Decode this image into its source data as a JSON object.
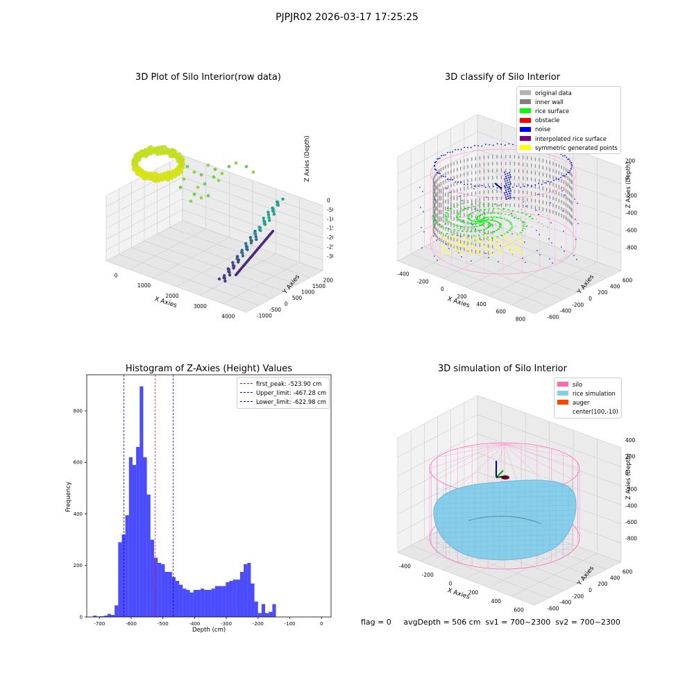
{
  "suptitle": "PJPJR02 2026-03-17 17:25:25",
  "panels": {
    "raw": {
      "title": "3D Plot of Silo Interior(row data)",
      "xlabel": "X Axies",
      "ylabel": "Y Axies",
      "zlabel": "Z Axies (Depth)",
      "xticks": [
        "0",
        "1000",
        "2000",
        "3000",
        "4000"
      ],
      "yticks": [
        "-1000",
        "-500",
        "0",
        "500",
        "1000",
        "1500",
        "2000"
      ],
      "zticks": [
        "0",
        "-500",
        "-1000",
        "-1500",
        "-2000",
        "-2500",
        "-3000"
      ]
    },
    "classify": {
      "title": "3D classify of Silo Interior",
      "xlabel": "X Axies",
      "ylabel": "Y Axies",
      "zlabel": "Z Axies (Depth)",
      "xticks": [
        "-400",
        "-200",
        "0",
        "200",
        "400",
        "600",
        "800"
      ],
      "yticks": [
        "-600",
        "-400",
        "-200",
        "0",
        "200",
        "400",
        "600"
      ],
      "zticks": [
        "200",
        "0",
        "-200",
        "-400",
        "-600",
        "-800"
      ],
      "legend": [
        {
          "label": "original data",
          "color": "#b3b3b3"
        },
        {
          "label": "inner wall",
          "color": "#808080"
        },
        {
          "label": "rice surface",
          "color": "#00ff00"
        },
        {
          "label": "obstacle",
          "color": "#ff0000"
        },
        {
          "label": "noise",
          "color": "#0000ff"
        },
        {
          "label": "interpolated rice surface",
          "color": "#800080"
        },
        {
          "label": "symmetric generated points",
          "color": "#ffff00"
        }
      ]
    },
    "simulation": {
      "title": "3D simulation of Silo Interior",
      "xlabel": "X Axies",
      "ylabel": "Y Axies",
      "zlabel": "Z Axies (Depth)",
      "xticks": [
        "-400",
        "-200",
        "0",
        "200",
        "400",
        "600"
      ],
      "yticks": [
        "-600",
        "-400",
        "-200",
        "0",
        "200",
        "400",
        "600"
      ],
      "zticks": [
        "400",
        "200",
        "0",
        "-200",
        "-400",
        "-600",
        "-800"
      ],
      "legend": [
        {
          "label": "silo",
          "color": "#ff69b4"
        },
        {
          "label": "rice simulation",
          "color": "#87ceeb"
        },
        {
          "label": "auger",
          "color": "#ff4500"
        },
        {
          "label": "center(100,-10)",
          "color": ""
        }
      ]
    }
  },
  "footer": {
    "text": "flag = 0     avgDepth = 506 cm  sv1 = 700~2300  sv2 = 700~2300"
  },
  "chart_data": [
    {
      "type": "bar",
      "title": "Histogram of Z-Axies (Height) Values",
      "xlabel": "Depth (cm)",
      "ylabel": "Frequency",
      "xlim": [
        -740,
        30
      ],
      "ylim": [
        0,
        940
      ],
      "xticks": [
        -700,
        -600,
        -500,
        -400,
        -300,
        -200,
        -100,
        0
      ],
      "yticks": [
        0,
        200,
        400,
        600,
        800
      ],
      "bin_width": 11.3,
      "bin_start": -720,
      "values": [
        5,
        2,
        3,
        5,
        12,
        8,
        45,
        290,
        320,
        395,
        620,
        590,
        660,
        895,
        620,
        475,
        300,
        230,
        210,
        205,
        175,
        175,
        155,
        140,
        125,
        110,
        105,
        95,
        105,
        105,
        110,
        105,
        105,
        110,
        120,
        120,
        120,
        135,
        140,
        145,
        145,
        175,
        205,
        210,
        130,
        60,
        15,
        50,
        15,
        20,
        50
      ],
      "bar_color": "#0000ff",
      "lines": [
        {
          "name": "first_peak: -523.90 cm",
          "x": -523.9,
          "color": "#ff0000"
        },
        {
          "name": "Upper_limit: -467.28 cm",
          "x": -467.28,
          "color": "#0000ff"
        },
        {
          "name": "Lower_limit: -622.98 cm",
          "x": -622.98,
          "color": "#0000ff"
        }
      ]
    }
  ]
}
